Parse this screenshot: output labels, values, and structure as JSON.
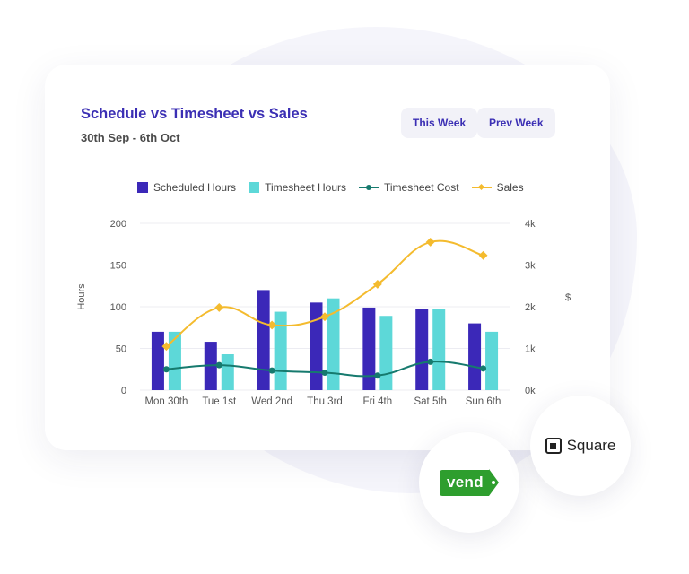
{
  "header": {
    "title": "Schedule vs Timesheet vs Sales",
    "subtitle": "30th Sep - 6th Oct"
  },
  "buttons": {
    "this_week": "This Week",
    "prev_week": "Prev Week"
  },
  "legend": [
    {
      "label": "Scheduled Hours",
      "color": "#3b28b8",
      "marker": "box"
    },
    {
      "label": "Timesheet Hours",
      "color": "#5dd8d8",
      "marker": "box"
    },
    {
      "label": "Timesheet Cost",
      "color": "#167a6e",
      "marker": "line-circle"
    },
    {
      "label": "Sales",
      "color": "#f4bb2e",
      "marker": "line-diamond"
    }
  ],
  "logos": {
    "vend": "vend",
    "square": "Square"
  },
  "chart_data": {
    "type": "bar",
    "categories": [
      "Mon 30th",
      "Tue 1st",
      "Wed 2nd",
      "Thu 3rd",
      "Fri 4th",
      "Sat 5th",
      "Sun 6th"
    ],
    "series": [
      {
        "name": "Scheduled Hours",
        "type": "bar",
        "axis": "left",
        "color": "#3b28b8",
        "values": [
          70,
          58,
          120,
          105,
          99,
          97,
          80
        ]
      },
      {
        "name": "Timesheet Hours",
        "type": "bar",
        "axis": "left",
        "color": "#5dd8d8",
        "values": [
          70,
          43,
          94,
          110,
          89,
          97,
          70
        ]
      },
      {
        "name": "Timesheet Cost",
        "type": "line",
        "axis": "right",
        "color": "#167a6e",
        "values": [
          500,
          600,
          470,
          420,
          350,
          680,
          520
        ]
      },
      {
        "name": "Sales",
        "type": "line",
        "axis": "right",
        "color": "#f4bb2e",
        "values": [
          1050,
          1980,
          1560,
          1760,
          2540,
          3550,
          3230
        ]
      }
    ],
    "ylabel": "Hours",
    "y2label": "$",
    "ylim": [
      0,
      200
    ],
    "y2lim": [
      0,
      4000
    ],
    "yticks": [
      "0",
      "50",
      "100",
      "150",
      "200"
    ],
    "y2ticks": [
      "0k",
      "1k",
      "2k",
      "3k",
      "4k"
    ],
    "grid": true,
    "legend_position": "top"
  }
}
